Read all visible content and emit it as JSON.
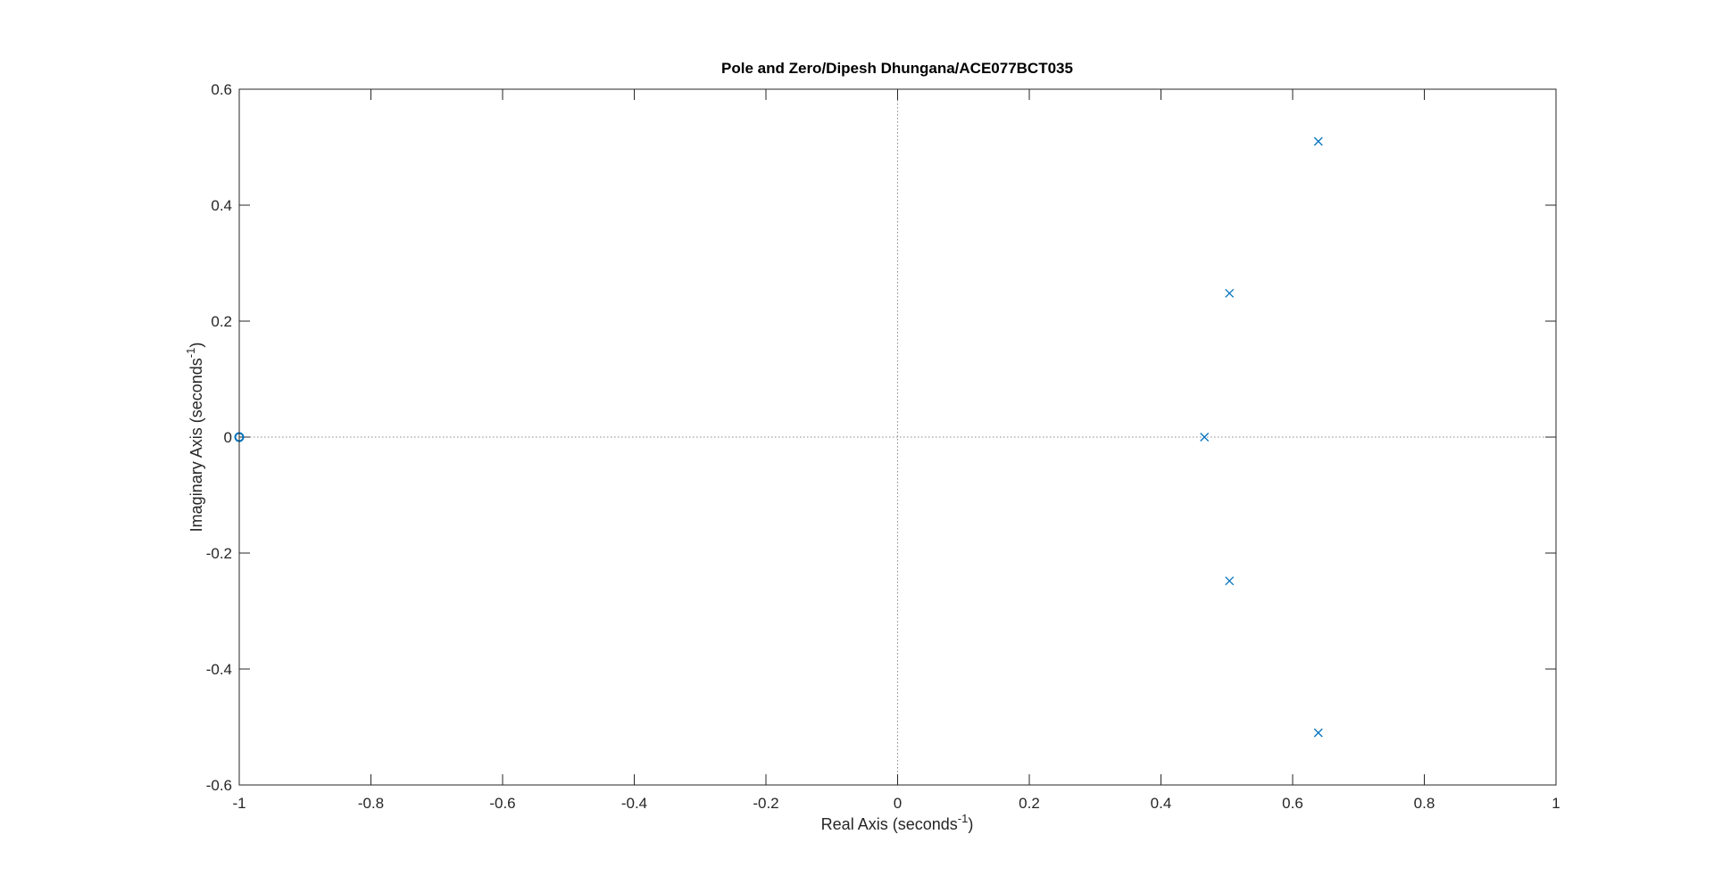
{
  "chart_data": {
    "type": "scatter",
    "title": "Pole and Zero/Dipesh Dhungana/ACE077BCT035",
    "xlabel": {
      "text": "Real Axis (seconds",
      "superscript": "-1",
      "suffix": ")"
    },
    "ylabel": {
      "text": "Imaginary Axis (seconds",
      "superscript": "-1",
      "suffix": ")"
    },
    "xlim": [
      -1,
      1
    ],
    "ylim": [
      -0.6,
      0.6
    ],
    "xticks": [
      -1,
      -0.8,
      -0.6,
      -0.4,
      -0.2,
      0,
      0.2,
      0.4,
      0.6,
      0.8,
      1
    ],
    "xtick_labels": [
      "-1",
      "-0.8",
      "-0.6",
      "-0.4",
      "-0.2",
      "0",
      "0.2",
      "0.4",
      "0.6",
      "0.8",
      "1"
    ],
    "yticks": [
      -0.6,
      -0.4,
      -0.2,
      0,
      0.2,
      0.4,
      0.6
    ],
    "ytick_labels": [
      "-0.6",
      "-0.4",
      "-0.2",
      "0",
      "0.2",
      "0.4",
      "0.6"
    ],
    "grid": false,
    "reference_lines": {
      "x": 0,
      "y": 0,
      "style": "dotted"
    },
    "series": [
      {
        "marker": "x",
        "color": "#0072BD",
        "points": [
          {
            "x": 0.639,
            "y": 0.51
          },
          {
            "x": 0.504,
            "y": 0.248
          },
          {
            "x": 0.466,
            "y": 0.0
          },
          {
            "x": 0.504,
            "y": -0.248
          },
          {
            "x": 0.639,
            "y": -0.51
          }
        ]
      },
      {
        "marker": "o",
        "color": "#0072BD",
        "points": [
          {
            "x": -1.0,
            "y": 0.0
          }
        ]
      }
    ]
  }
}
